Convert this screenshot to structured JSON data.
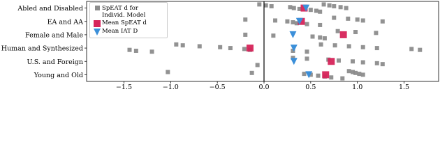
{
  "chart_data": {
    "type": "strip",
    "categories": [
      "Abled and Disabled",
      "EA and AA",
      "Female and Male",
      "Human and Synthesized",
      "U.S. and Foreign",
      "Young and Old"
    ],
    "series": [
      {
        "name": "SpEAT d for Individ. Model",
        "color": "#8c8c8c",
        "marker": "square",
        "values": [
          [
            -0.05,
            0.02,
            0.08,
            0.28,
            0.32,
            0.38,
            0.5,
            0.56,
            0.6,
            0.64,
            0.7,
            0.75,
            0.82,
            0.88
          ],
          [
            -0.2,
            0.12,
            0.25,
            0.31,
            0.35,
            0.46,
            0.6,
            0.75,
            0.9,
            1.0,
            1.06,
            1.27
          ],
          [
            -0.2,
            0.1,
            0.52,
            0.6,
            0.65,
            0.79,
            0.98,
            1.2
          ],
          [
            -1.44,
            -1.37,
            -1.2,
            -0.94,
            -0.87,
            -0.69,
            -0.47,
            -0.36,
            -0.21,
            -0.15,
            0.31,
            0.46,
            0.61,
            0.76,
            0.91,
            1.06,
            1.21,
            1.58,
            1.67
          ],
          [
            -0.07,
            0.31,
            0.46,
            0.69,
            0.8,
            0.95,
            1.06,
            1.21,
            1.27
          ],
          [
            -1.03,
            -0.13,
            0.43,
            0.5,
            0.58,
            0.65,
            0.72,
            0.84,
            0.91,
            0.95,
            0.98,
            1.02,
            1.06
          ]
        ]
      },
      {
        "name": "Mean SpEAT d",
        "color": "#d6245a",
        "marker": "square",
        "values": [
          0.43,
          0.4,
          0.85,
          -0.15,
          0.72,
          0.66
        ]
      },
      {
        "name": "Mean IAT D",
        "color": "#3b8fd9",
        "marker": "triangle",
        "values": [
          0.45,
          0.38,
          0.31,
          0.32,
          0.32,
          0.48
        ]
      }
    ],
    "xlim": [
      -1.9,
      1.87
    ],
    "xticks": [
      {
        "value": -1.5,
        "label": "−1.5"
      },
      {
        "value": -1,
        "label": "−1.0"
      },
      {
        "value": -0.5,
        "label": "−0.5"
      },
      {
        "value": 0,
        "label": "0.0"
      },
      0.5,
      {
        "value": 1,
        "label": "1.0"
      },
      1.5
    ],
    "zero_line": true,
    "legend": "upper left"
  }
}
